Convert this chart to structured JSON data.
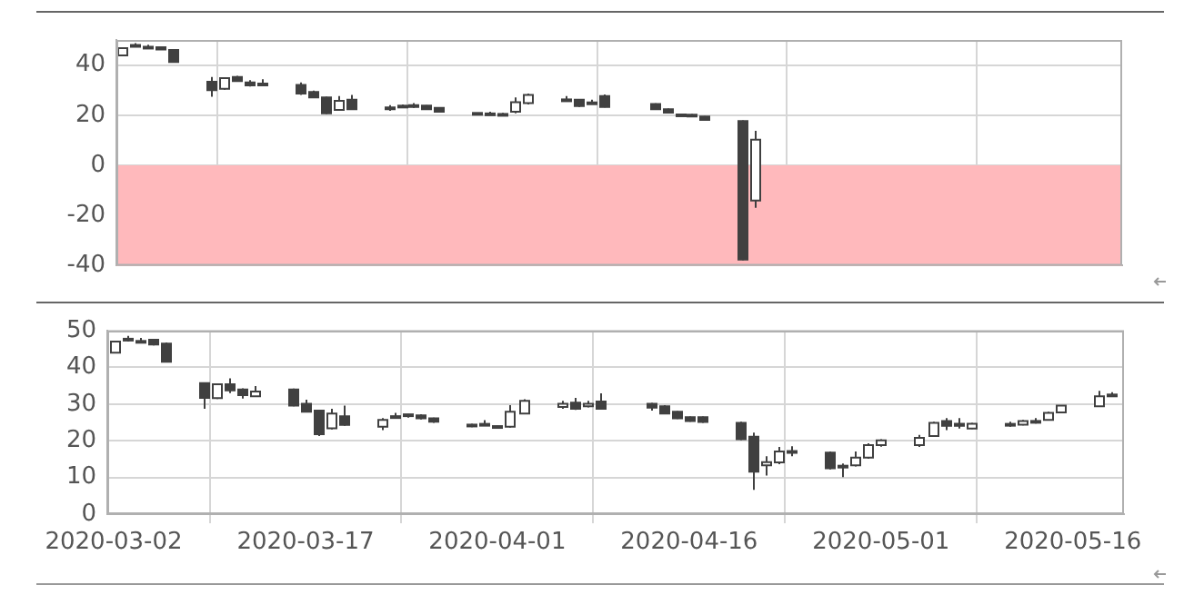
{
  "chart_data": [
    {
      "type": "candlestick",
      "color": "#404040",
      "xlim": [
        "2020-03-01T12:00",
        "2020-05-20"
      ],
      "xticks": [
        "2020-03-02",
        "2020-03-17",
        "2020-04-01",
        "2020-04-16",
        "2020-05-01",
        "2020-05-16"
      ],
      "ylim": [
        -40,
        50
      ],
      "yticks": [
        -40,
        -20,
        0,
        20,
        40
      ],
      "grid": true,
      "tick_labels": "y",
      "bands": [
        {
          "axis": "y",
          "from": -40,
          "to": 0,
          "color": "#ffb9bc"
        }
      ],
      "colors": [
        "#ffffff",
        "#ffffff",
        "#ffffff",
        "#404040",
        "#404040",
        "#404040",
        "#ffffff",
        "#404040",
        "#404040",
        "#ffffff",
        "#404040",
        "#404040",
        "#404040",
        "#ffffff",
        "#404040",
        "#ffffff",
        "#ffffff",
        "#ffffff",
        "#404040",
        "#404040",
        "#404040",
        "#ffffff",
        "#404040",
        "#ffffff",
        "#ffffff",
        "#ffffff",
        "#404040",
        "#ffffff",
        "#404040",
        "#404040",
        "#404040",
        "#404040",
        "#404040",
        "#404040",
        "#404040",
        "#ffffff"
      ],
      "x": [
        "2020-03-02",
        "2020-03-03",
        "2020-03-04",
        "2020-03-05",
        "2020-03-06",
        "2020-03-09",
        "2020-03-10",
        "2020-03-11",
        "2020-03-12",
        "2020-03-13",
        "2020-03-16",
        "2020-03-17",
        "2020-03-18",
        "2020-03-19",
        "2020-03-20",
        "2020-03-23",
        "2020-03-24",
        "2020-03-25",
        "2020-03-26",
        "2020-03-27",
        "2020-03-30",
        "2020-03-31",
        "2020-04-01",
        "2020-04-02",
        "2020-04-03",
        "2020-04-06",
        "2020-04-07",
        "2020-04-08",
        "2020-04-09",
        "2020-04-13",
        "2020-04-14",
        "2020-04-15",
        "2020-04-16",
        "2020-04-17",
        "2020-04-20",
        "2020-04-21"
      ],
      "ohlc": [
        [
          43.8,
          47.1,
          43.6,
          46.7
        ],
        [
          47.6,
          48.7,
          47.4,
          48.0
        ],
        [
          47.0,
          48.1,
          46.9,
          47.3
        ],
        [
          47.1,
          47.3,
          46.0,
          46.2
        ],
        [
          46.0,
          46.2,
          41.0,
          41.2
        ],
        [
          33.3,
          35.2,
          27.4,
          30.0
        ],
        [
          30.5,
          34.9,
          30.2,
          34.8
        ],
        [
          35.2,
          35.7,
          33.3,
          33.6
        ],
        [
          33.1,
          34.0,
          31.4,
          31.9
        ],
        [
          32.2,
          34.3,
          31.9,
          32.6
        ],
        [
          32.1,
          33.1,
          28.1,
          28.6
        ],
        [
          29.3,
          29.8,
          26.9,
          27.1
        ],
        [
          27.1,
          27.4,
          20.5,
          20.7
        ],
        [
          22.1,
          27.6,
          21.9,
          25.7
        ],
        [
          26.2,
          28.1,
          22.1,
          22.4
        ],
        [
          22.6,
          24.0,
          21.7,
          23.1
        ],
        [
          23.6,
          24.3,
          23.3,
          23.8
        ],
        [
          23.8,
          24.8,
          22.9,
          24.0
        ],
        [
          23.8,
          24.0,
          22.1,
          22.4
        ],
        [
          22.9,
          23.1,
          21.2,
          21.4
        ],
        [
          20.9,
          21.0,
          20.2,
          20.6
        ],
        [
          20.4,
          21.4,
          20.2,
          20.7
        ],
        [
          20.5,
          20.9,
          19.8,
          20.2
        ],
        [
          21.4,
          27.1,
          20.7,
          25.2
        ],
        [
          24.8,
          28.6,
          24.3,
          28.1
        ],
        [
          26.0,
          27.6,
          25.8,
          26.3
        ],
        [
          26.2,
          26.4,
          23.3,
          23.6
        ],
        [
          24.8,
          26.2,
          24.3,
          25.1
        ],
        [
          27.6,
          28.3,
          23.1,
          23.3
        ],
        [
          24.5,
          24.7,
          22.1,
          22.4
        ],
        [
          22.4,
          22.6,
          20.8,
          21.0
        ],
        [
          20.3,
          20.5,
          19.7,
          19.9
        ],
        [
          20.2,
          20.5,
          19.6,
          19.9
        ],
        [
          19.5,
          19.7,
          17.8,
          18.1
        ],
        [
          17.7,
          17.9,
          -37.9,
          -37.6
        ],
        [
          -14.0,
          13.8,
          -16.9,
          10.2
        ]
      ]
    },
    {
      "type": "candlestick",
      "color": "#404040",
      "xlim": [
        "2020-03-01T12:00",
        "2020-05-20"
      ],
      "xticks": [
        "2020-03-02",
        "2020-03-17",
        "2020-04-01",
        "2020-04-16",
        "2020-05-01",
        "2020-05-16"
      ],
      "ylim": [
        0,
        50
      ],
      "yticks": [
        0,
        10,
        20,
        30,
        40,
        50
      ],
      "grid": true,
      "colors": [
        "#ffffff",
        "#404040",
        "#404040",
        "#404040",
        "#404040",
        "#404040",
        "#ffffff",
        "#404040",
        "#404040",
        "#ffffff",
        "#404040",
        "#404040",
        "#404040",
        "#ffffff",
        "#404040",
        "#ffffff",
        "#ffffff",
        "#ffffff",
        "#404040",
        "#404040",
        "#404040",
        "#ffffff",
        "#404040",
        "#ffffff",
        "#ffffff",
        "#ffffff",
        "#404040",
        "#ffffff",
        "#404040",
        "#404040",
        "#404040",
        "#404040",
        "#404040",
        "#404040",
        "#404040",
        "#404040",
        "#ffffff",
        "#ffffff",
        "#ffffff",
        "#404040",
        "#ffffff",
        "#ffffff",
        "#ffffff",
        "#ffffff",
        "#ffffff",
        "#ffffff",
        "#404040",
        "#404040",
        "#ffffff",
        "#ffffff",
        "#ffffff",
        "#ffffff",
        "#ffffff",
        "#ffffff",
        "#ffffff",
        "#ffffff"
      ],
      "x": [
        "2020-03-02",
        "2020-03-03",
        "2020-03-04",
        "2020-03-05",
        "2020-03-06",
        "2020-03-09",
        "2020-03-10",
        "2020-03-11",
        "2020-03-12",
        "2020-03-13",
        "2020-03-16",
        "2020-03-17",
        "2020-03-18",
        "2020-03-19",
        "2020-03-20",
        "2020-03-23",
        "2020-03-24",
        "2020-03-25",
        "2020-03-26",
        "2020-03-27",
        "2020-03-30",
        "2020-03-31",
        "2020-04-01",
        "2020-04-02",
        "2020-04-03",
        "2020-04-06",
        "2020-04-07",
        "2020-04-08",
        "2020-04-09",
        "2020-04-13",
        "2020-04-14",
        "2020-04-15",
        "2020-04-16",
        "2020-04-17",
        "2020-04-20",
        "2020-04-21",
        "2020-04-22",
        "2020-04-23",
        "2020-04-24",
        "2020-04-27",
        "2020-04-28",
        "2020-04-29",
        "2020-04-30",
        "2020-05-01",
        "2020-05-04",
        "2020-05-05",
        "2020-05-06",
        "2020-05-07",
        "2020-05-08",
        "2020-05-11",
        "2020-05-12",
        "2020-05-13",
        "2020-05-14",
        "2020-05-15",
        "2020-05-18",
        "2020-05-19"
      ],
      "ohlc": [
        [
          44.0,
          47.3,
          43.8,
          47.0
        ],
        [
          47.8,
          48.6,
          47.0,
          47.5
        ],
        [
          47.2,
          48.0,
          46.8,
          47.0
        ],
        [
          47.5,
          47.6,
          46.0,
          46.2
        ],
        [
          46.5,
          46.8,
          41.5,
          41.5
        ],
        [
          35.7,
          35.8,
          28.7,
          31.7
        ],
        [
          31.6,
          35.6,
          31.4,
          35.4
        ],
        [
          35.4,
          37.0,
          33.0,
          33.7
        ],
        [
          34.0,
          34.3,
          31.5,
          32.4
        ],
        [
          32.1,
          34.9,
          32.0,
          33.4
        ],
        [
          34.0,
          34.2,
          29.4,
          29.6
        ],
        [
          30.1,
          31.2,
          27.8,
          27.9
        ],
        [
          28.2,
          28.4,
          21.3,
          21.8
        ],
        [
          23.4,
          28.7,
          23.1,
          27.4
        ],
        [
          26.7,
          29.6,
          24.1,
          24.3
        ],
        [
          23.8,
          26.2,
          22.9,
          25.7
        ],
        [
          26.4,
          27.6,
          26.0,
          26.7
        ],
        [
          27.0,
          27.3,
          26.3,
          27.2
        ],
        [
          26.9,
          27.2,
          25.8,
          26.1
        ],
        [
          26.1,
          26.3,
          24.9,
          25.2
        ],
        [
          24.4,
          24.6,
          23.7,
          24.0
        ],
        [
          24.5,
          25.6,
          24.0,
          24.6
        ],
        [
          24.0,
          24.1,
          23.6,
          23.8
        ],
        [
          23.8,
          29.7,
          23.6,
          27.9
        ],
        [
          27.4,
          31.3,
          27.2,
          30.9
        ],
        [
          29.2,
          30.9,
          28.7,
          30.1
        ],
        [
          30.4,
          31.7,
          28.4,
          28.7
        ],
        [
          29.4,
          30.9,
          29.1,
          30.1
        ],
        [
          30.7,
          32.9,
          28.5,
          28.7
        ],
        [
          30.1,
          30.3,
          28.2,
          29.0
        ],
        [
          29.4,
          29.7,
          27.2,
          27.4
        ],
        [
          27.9,
          28.1,
          25.9,
          26.1
        ],
        [
          26.4,
          26.6,
          25.2,
          25.4
        ],
        [
          26.4,
          26.6,
          24.9,
          25.1
        ],
        [
          24.9,
          25.2,
          20.2,
          20.4
        ],
        [
          21.1,
          22.2,
          6.6,
          11.6
        ],
        [
          13.3,
          15.8,
          10.5,
          14.2
        ],
        [
          14.1,
          18.3,
          13.6,
          17.1
        ],
        [
          16.9,
          18.5,
          15.8,
          17.2
        ],
        [
          16.8,
          17.1,
          12.2,
          12.5
        ],
        [
          12.8,
          13.8,
          10.1,
          13.2
        ],
        [
          13.3,
          17.1,
          13.0,
          15.4
        ],
        [
          15.4,
          19.3,
          15.1,
          18.8
        ],
        [
          18.8,
          20.4,
          18.4,
          20.1
        ],
        [
          18.8,
          21.6,
          18.3,
          20.8
        ],
        [
          21.3,
          25.2,
          21.1,
          24.9
        ],
        [
          25.4,
          26.2,
          22.9,
          24.1
        ],
        [
          24.6,
          26.2,
          23.3,
          24.1
        ],
        [
          23.3,
          24.9,
          23.2,
          24.6
        ],
        [
          24.4,
          25.2,
          23.8,
          24.6
        ],
        [
          24.4,
          25.7,
          24.2,
          25.4
        ],
        [
          25.3,
          26.2,
          24.7,
          25.4
        ],
        [
          25.7,
          27.9,
          25.5,
          27.6
        ],
        [
          27.7,
          29.7,
          27.5,
          29.6
        ],
        [
          29.4,
          33.6,
          29.2,
          32.1
        ],
        [
          32.4,
          33.2,
          31.9,
          32.6
        ]
      ]
    }
  ]
}
